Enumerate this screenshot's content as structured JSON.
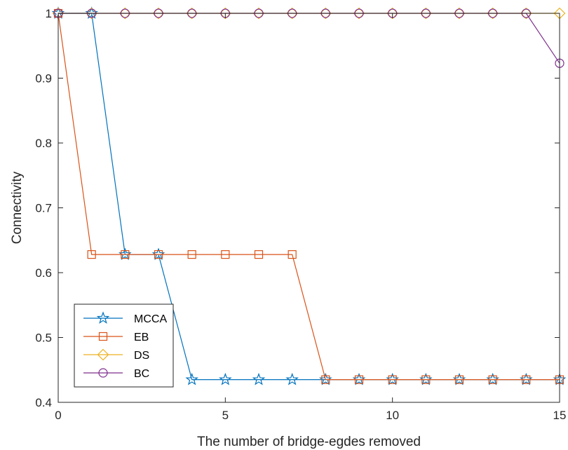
{
  "chart_data": {
    "type": "line",
    "title": "",
    "xlabel": "The number of bridge-egdes removed",
    "ylabel": "Connectivity",
    "xlim": [
      0,
      15
    ],
    "ylim": [
      0.4,
      1.0
    ],
    "x_ticks": [
      0,
      5,
      10,
      15
    ],
    "y_ticks": [
      0.4,
      0.5,
      0.6,
      0.7,
      0.8,
      0.9,
      1.0
    ],
    "x_tick_labels": [
      "0",
      "5",
      "10",
      "15"
    ],
    "y_tick_labels": [
      "0.4",
      "0.5",
      "0.6",
      "0.7",
      "0.8",
      "0.9",
      "1"
    ],
    "x": [
      0,
      1,
      2,
      3,
      4,
      5,
      6,
      7,
      8,
      9,
      10,
      11,
      12,
      13,
      14,
      15
    ],
    "grid": false,
    "legend_position": "bottom-left",
    "series": [
      {
        "name": "MCCA",
        "marker": "star",
        "color": "#0072BD",
        "values": [
          1,
          1,
          0.628,
          0.628,
          0.435,
          0.435,
          0.435,
          0.435,
          0.435,
          0.435,
          0.435,
          0.435,
          0.435,
          0.435,
          0.435,
          0.435
        ]
      },
      {
        "name": "EB",
        "marker": "square",
        "color": "#D95319",
        "values": [
          1,
          0.628,
          0.628,
          0.628,
          0.628,
          0.628,
          0.628,
          0.628,
          0.435,
          0.435,
          0.435,
          0.435,
          0.435,
          0.435,
          0.435,
          0.435
        ]
      },
      {
        "name": "DS",
        "marker": "diamond",
        "color": "#EDB120",
        "values": [
          1,
          1,
          1,
          1,
          1,
          1,
          1,
          1,
          1,
          1,
          1,
          1,
          1,
          1,
          1,
          1
        ]
      },
      {
        "name": "BC",
        "marker": "circle",
        "color": "#7E2F8E",
        "values": [
          1,
          1,
          1,
          1,
          1,
          1,
          1,
          1,
          1,
          1,
          1,
          1,
          1,
          1,
          1,
          0.923
        ]
      }
    ]
  }
}
